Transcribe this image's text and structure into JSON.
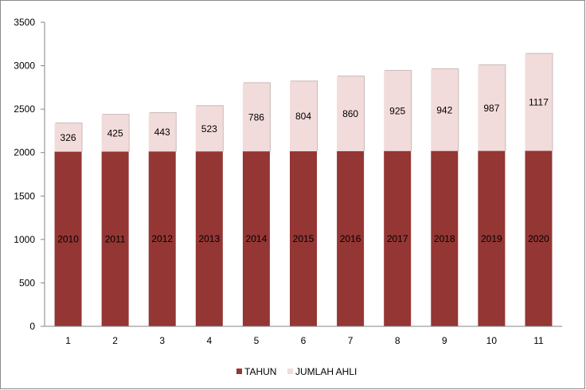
{
  "chart_data": {
    "type": "bar",
    "stacked": true,
    "categories": [
      "1",
      "2",
      "3",
      "4",
      "5",
      "6",
      "7",
      "8",
      "9",
      "10",
      "11"
    ],
    "series": [
      {
        "name": "TAHUN",
        "values": [
          2010,
          2011,
          2012,
          2013,
          2014,
          2015,
          2016,
          2017,
          2018,
          2019,
          2020
        ]
      },
      {
        "name": "JUMLAH AHLI",
        "values": [
          326,
          425,
          443,
          523,
          786,
          804,
          860,
          925,
          942,
          987,
          1117
        ]
      }
    ],
    "y_ticks": [
      "0",
      "500",
      "1000",
      "1500",
      "2000",
      "2500",
      "3000",
      "3500"
    ],
    "ylim": [
      0,
      3500
    ],
    "grid": false,
    "legend_position": "bottom",
    "colors": {
      "TAHUN": "#943634",
      "JUMLAH AHLI": "#f2dcdb",
      "axis": "#868686"
    }
  }
}
